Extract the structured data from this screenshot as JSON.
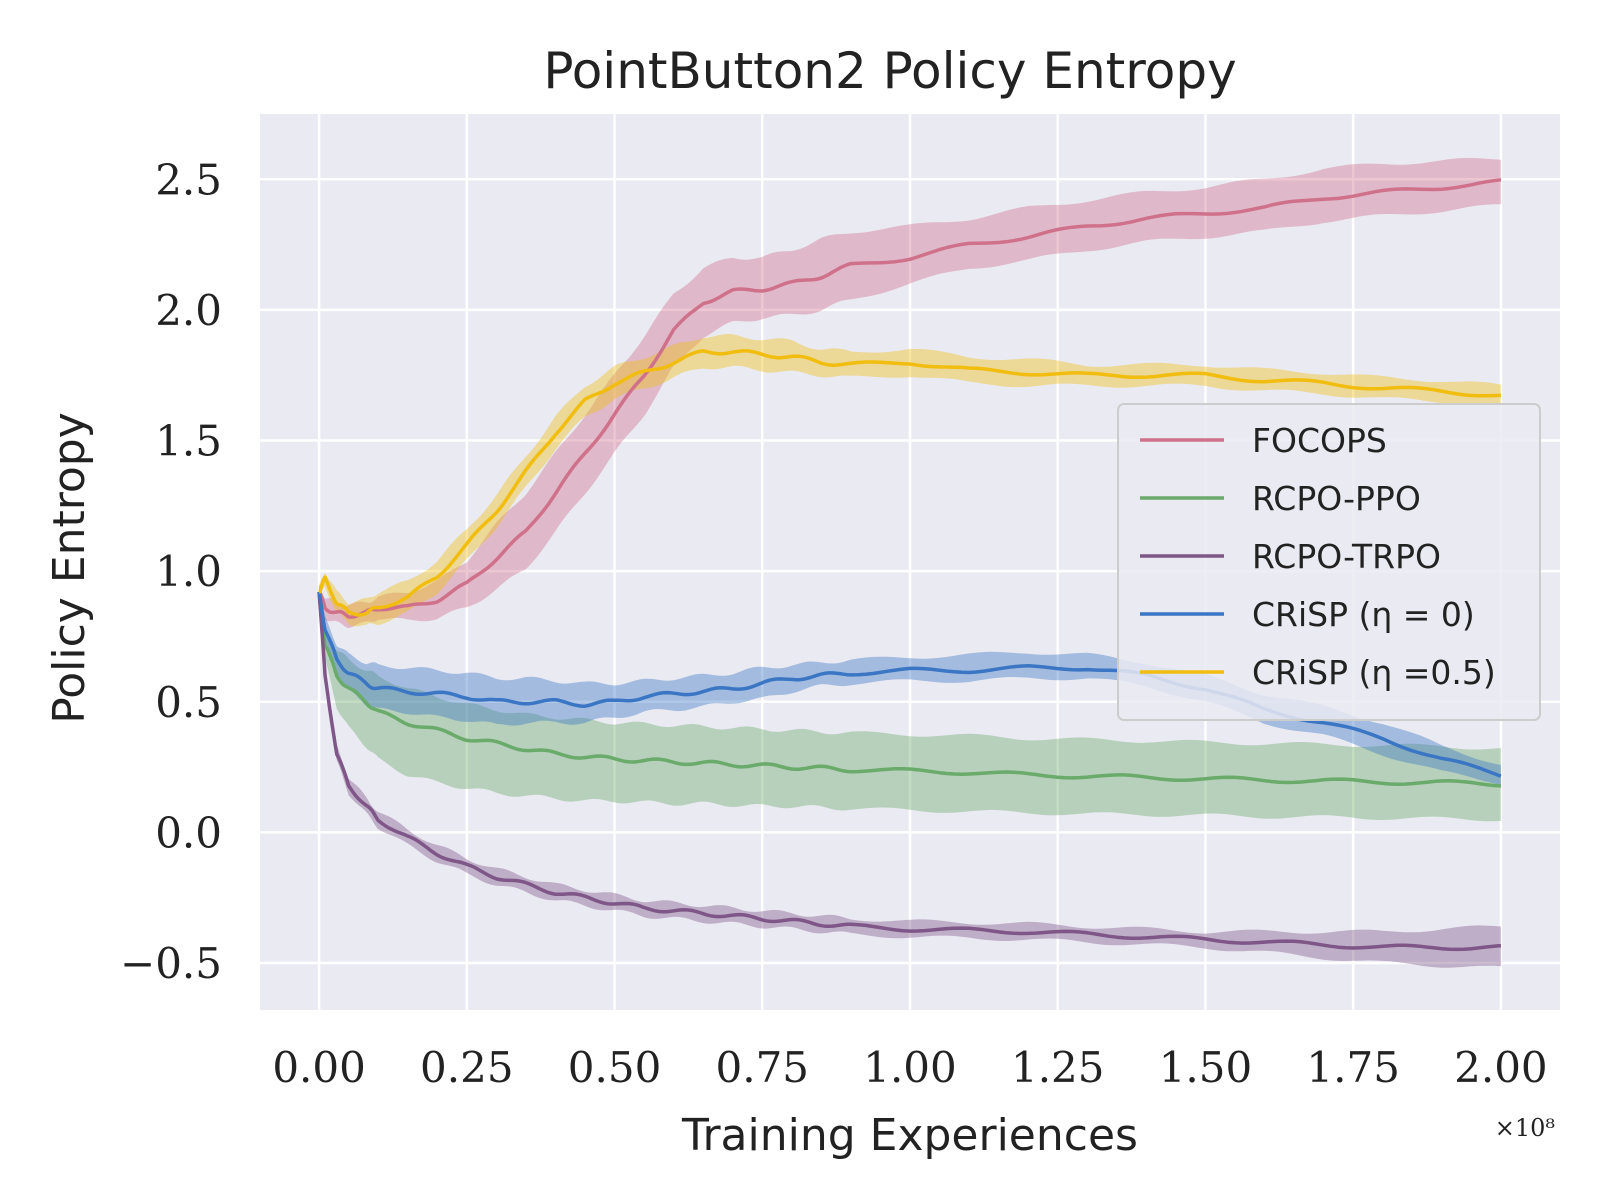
{
  "chart_data": {
    "type": "line",
    "title": "PointButton2 Policy Entropy",
    "xlabel": "Training Experiences",
    "ylabel": "Policy Entropy",
    "x_scale_label": "×10⁸",
    "xlim": [
      -0.1,
      2.1
    ],
    "ylim": [
      -0.68,
      2.75
    ],
    "x_ticks": [
      0.0,
      0.25,
      0.5,
      0.75,
      1.0,
      1.25,
      1.5,
      1.75,
      2.0
    ],
    "x_tick_labels": [
      "0.00",
      "0.25",
      "0.50",
      "0.75",
      "1.00",
      "1.25",
      "1.50",
      "1.75",
      "2.00"
    ],
    "y_ticks": [
      -0.5,
      0.0,
      0.5,
      1.0,
      1.5,
      2.0,
      2.5
    ],
    "y_tick_labels": [
      "−0.5",
      "0.0",
      "0.5",
      "1.0",
      "1.5",
      "2.0",
      "2.5"
    ],
    "grid": true,
    "legend_position": "center-right",
    "x": [
      0.0,
      0.01,
      0.03,
      0.05,
      0.08,
      0.1,
      0.15,
      0.2,
      0.25,
      0.3,
      0.35,
      0.4,
      0.45,
      0.5,
      0.55,
      0.6,
      0.65,
      0.7,
      0.75,
      0.8,
      0.85,
      0.9,
      1.0,
      1.1,
      1.2,
      1.3,
      1.4,
      1.5,
      1.6,
      1.7,
      1.8,
      1.9,
      2.0
    ],
    "series": [
      {
        "name": "FOCOPS",
        "color": "#d0718b",
        "values": [
          0.92,
          0.86,
          0.84,
          0.83,
          0.84,
          0.86,
          0.86,
          0.89,
          0.95,
          1.05,
          1.15,
          1.3,
          1.45,
          1.6,
          1.75,
          1.92,
          2.03,
          2.07,
          2.08,
          2.1,
          2.13,
          2.17,
          2.2,
          2.25,
          2.28,
          2.32,
          2.35,
          2.37,
          2.39,
          2.43,
          2.45,
          2.47,
          2.49
        ],
        "lower": [
          0.89,
          0.82,
          0.8,
          0.79,
          0.8,
          0.82,
          0.81,
          0.82,
          0.86,
          0.93,
          1.01,
          1.15,
          1.3,
          1.45,
          1.6,
          1.78,
          1.9,
          1.95,
          1.97,
          1.98,
          2.0,
          2.04,
          2.1,
          2.16,
          2.19,
          2.23,
          2.26,
          2.28,
          2.3,
          2.34,
          2.36,
          2.38,
          2.4
        ],
        "upper": [
          0.95,
          0.9,
          0.88,
          0.87,
          0.88,
          0.9,
          0.92,
          0.96,
          1.04,
          1.18,
          1.3,
          1.45,
          1.6,
          1.75,
          1.9,
          2.06,
          2.16,
          2.2,
          2.2,
          2.23,
          2.27,
          2.3,
          2.32,
          2.35,
          2.39,
          2.42,
          2.45,
          2.47,
          2.5,
          2.54,
          2.56,
          2.57,
          2.58
        ]
      },
      {
        "name": "RCPO-PPO",
        "color": "#6aaa6a",
        "values": [
          0.92,
          0.72,
          0.6,
          0.55,
          0.5,
          0.46,
          0.42,
          0.39,
          0.36,
          0.34,
          0.32,
          0.3,
          0.29,
          0.28,
          0.275,
          0.27,
          0.265,
          0.26,
          0.255,
          0.25,
          0.245,
          0.24,
          0.235,
          0.23,
          0.22,
          0.215,
          0.21,
          0.205,
          0.2,
          0.197,
          0.193,
          0.19,
          0.185
        ],
        "lower": [
          0.9,
          0.66,
          0.48,
          0.4,
          0.33,
          0.28,
          0.22,
          0.19,
          0.17,
          0.15,
          0.14,
          0.13,
          0.12,
          0.12,
          0.115,
          0.11,
          0.11,
          0.105,
          0.1,
          0.1,
          0.095,
          0.09,
          0.085,
          0.08,
          0.075,
          0.07,
          0.068,
          0.065,
          0.06,
          0.058,
          0.055,
          0.052,
          0.05
        ],
        "upper": [
          0.94,
          0.78,
          0.7,
          0.66,
          0.62,
          0.6,
          0.55,
          0.52,
          0.49,
          0.47,
          0.45,
          0.44,
          0.43,
          0.42,
          0.415,
          0.41,
          0.405,
          0.4,
          0.395,
          0.39,
          0.385,
          0.38,
          0.375,
          0.37,
          0.36,
          0.355,
          0.35,
          0.345,
          0.34,
          0.337,
          0.333,
          0.33,
          0.32
        ]
      },
      {
        "name": "RCPO-TRPO",
        "color": "#7e5687",
        "values": [
          0.92,
          0.6,
          0.3,
          0.18,
          0.1,
          0.05,
          -0.02,
          -0.08,
          -0.13,
          -0.17,
          -0.2,
          -0.23,
          -0.25,
          -0.27,
          -0.29,
          -0.3,
          -0.31,
          -0.32,
          -0.33,
          -0.34,
          -0.35,
          -0.36,
          -0.37,
          -0.375,
          -0.38,
          -0.39,
          -0.4,
          -0.41,
          -0.42,
          -0.43,
          -0.44,
          -0.44,
          -0.44
        ],
        "lower": [
          0.9,
          0.57,
          0.27,
          0.15,
          0.07,
          0.02,
          -0.05,
          -0.11,
          -0.16,
          -0.2,
          -0.23,
          -0.26,
          -0.28,
          -0.3,
          -0.32,
          -0.33,
          -0.34,
          -0.35,
          -0.36,
          -0.37,
          -0.38,
          -0.39,
          -0.4,
          -0.405,
          -0.41,
          -0.42,
          -0.43,
          -0.44,
          -0.46,
          -0.48,
          -0.5,
          -0.51,
          -0.52
        ],
        "upper": [
          0.94,
          0.63,
          0.33,
          0.21,
          0.13,
          0.08,
          0.01,
          -0.05,
          -0.1,
          -0.14,
          -0.17,
          -0.2,
          -0.22,
          -0.24,
          -0.26,
          -0.27,
          -0.28,
          -0.29,
          -0.3,
          -0.31,
          -0.32,
          -0.33,
          -0.34,
          -0.345,
          -0.35,
          -0.36,
          -0.37,
          -0.38,
          -0.38,
          -0.38,
          -0.38,
          -0.37,
          -0.36
        ]
      },
      {
        "name": "CRiSP (η = 0)",
        "color": "#3a76c4",
        "values": [
          0.92,
          0.78,
          0.66,
          0.61,
          0.57,
          0.55,
          0.54,
          0.53,
          0.52,
          0.5,
          0.5,
          0.5,
          0.49,
          0.5,
          0.52,
          0.53,
          0.54,
          0.55,
          0.57,
          0.59,
          0.6,
          0.61,
          0.62,
          0.62,
          0.63,
          0.63,
          0.6,
          0.55,
          0.47,
          0.42,
          0.36,
          0.28,
          0.22
        ],
        "lower": [
          0.9,
          0.74,
          0.6,
          0.54,
          0.49,
          0.47,
          0.46,
          0.44,
          0.43,
          0.41,
          0.42,
          0.42,
          0.42,
          0.44,
          0.46,
          0.47,
          0.48,
          0.5,
          0.51,
          0.54,
          0.56,
          0.57,
          0.58,
          0.58,
          0.59,
          0.59,
          0.56,
          0.5,
          0.42,
          0.37,
          0.3,
          0.23,
          0.19
        ],
        "upper": [
          0.94,
          0.82,
          0.72,
          0.68,
          0.65,
          0.64,
          0.63,
          0.62,
          0.61,
          0.59,
          0.59,
          0.58,
          0.57,
          0.57,
          0.58,
          0.59,
          0.6,
          0.61,
          0.63,
          0.64,
          0.65,
          0.66,
          0.67,
          0.68,
          0.69,
          0.68,
          0.65,
          0.6,
          0.53,
          0.48,
          0.42,
          0.33,
          0.26
        ]
      },
      {
        "name": "CRiSP (η =0.5)",
        "color": "#f1bd0f",
        "values": [
          0.92,
          0.97,
          0.88,
          0.84,
          0.84,
          0.86,
          0.9,
          0.98,
          1.1,
          1.23,
          1.38,
          1.53,
          1.65,
          1.72,
          1.76,
          1.8,
          1.84,
          1.84,
          1.83,
          1.82,
          1.8,
          1.79,
          1.8,
          1.77,
          1.76,
          1.75,
          1.75,
          1.75,
          1.73,
          1.72,
          1.7,
          1.69,
          1.67
        ],
        "lower": [
          0.9,
          0.94,
          0.84,
          0.8,
          0.79,
          0.8,
          0.84,
          0.92,
          1.04,
          1.17,
          1.32,
          1.47,
          1.59,
          1.66,
          1.7,
          1.74,
          1.78,
          1.78,
          1.77,
          1.76,
          1.75,
          1.74,
          1.75,
          1.72,
          1.71,
          1.71,
          1.71,
          1.71,
          1.69,
          1.68,
          1.66,
          1.65,
          1.63
        ],
        "upper": [
          0.94,
          1.0,
          0.92,
          0.88,
          0.89,
          0.92,
          0.96,
          1.04,
          1.16,
          1.29,
          1.44,
          1.59,
          1.71,
          1.78,
          1.82,
          1.86,
          1.9,
          1.9,
          1.89,
          1.88,
          1.85,
          1.84,
          1.85,
          1.82,
          1.81,
          1.79,
          1.79,
          1.79,
          1.77,
          1.76,
          1.74,
          1.73,
          1.71
        ]
      }
    ]
  }
}
